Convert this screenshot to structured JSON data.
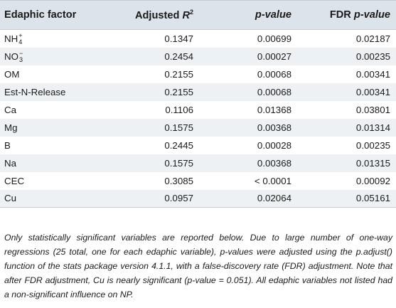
{
  "table": {
    "headers": {
      "factor": "Edaphic factor",
      "adjusted_r2_base": "Adjusted ",
      "adjusted_r2_r": "R",
      "adjusted_r2_sup": "2",
      "p_value": "p-value",
      "fdr_prefix": "FDR ",
      "fdr_p": "p-value"
    },
    "rows": [
      {
        "factor_base": "NH",
        "factor_sup": "+",
        "factor_sub": "4",
        "adj_r2": "0.1347",
        "p_value": "0.00699",
        "fdr_p": "0.02187"
      },
      {
        "factor_base": "NO",
        "factor_sup": "−",
        "factor_sub": "3",
        "adj_r2": "0.2454",
        "p_value": "0.00027",
        "fdr_p": "0.00235"
      },
      {
        "factor": "OM",
        "adj_r2": "0.2155",
        "p_value": "0.00068",
        "fdr_p": "0.00341"
      },
      {
        "factor": "Est-N-Release",
        "adj_r2": "0.2155",
        "p_value": "0.00068",
        "fdr_p": "0.00341"
      },
      {
        "factor": "Ca",
        "adj_r2": "0.1106",
        "p_value": "0.01368",
        "fdr_p": "0.03801"
      },
      {
        "factor": "Mg",
        "adj_r2": "0.1575",
        "p_value": "0.00368",
        "fdr_p": "0.01314"
      },
      {
        "factor": "B",
        "adj_r2": "0.2445",
        "p_value": "0.00028",
        "fdr_p": "0.00235"
      },
      {
        "factor": "Na",
        "adj_r2": "0.1575",
        "p_value": "0.00368",
        "fdr_p": "0.01315"
      },
      {
        "factor": "CEC",
        "adj_r2": "0.3085",
        "p_value": "< 0.0001",
        "fdr_p": "0.00092"
      },
      {
        "factor": "Cu",
        "adj_r2": "0.0957",
        "p_value": "0.02064",
        "fdr_p": "0.05161"
      }
    ]
  },
  "footnote": "Only statistically significant variables are reported below. Due to large number of one-way regressions (25 total, one for each edaphic variable), p-values were adjusted using the p.adjust() function of the stats package version 4.1.1, with a false-discovery rate (FDR) adjustment. Note that after FDR adjustment, Cu is nearly significant (p-value = 0.051). All edaphic variables not listed had a non-significant influence on NP."
}
